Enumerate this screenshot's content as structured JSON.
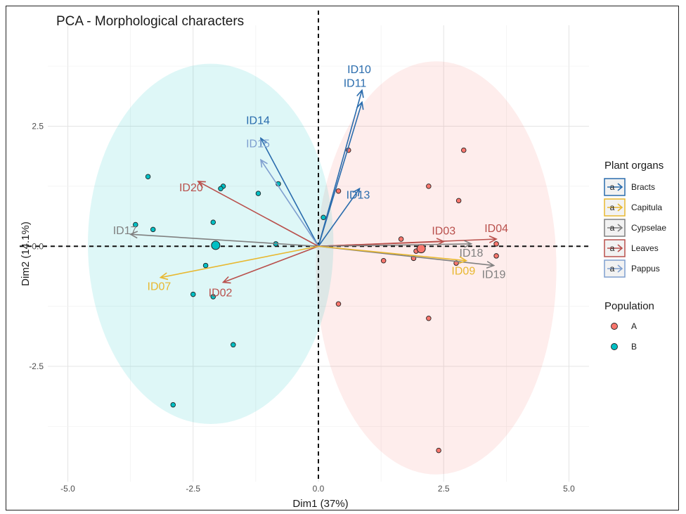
{
  "chart_data": {
    "type": "scatter",
    "title": "PCA - Morphological characters",
    "xlabel": "Dim1 (37%)",
    "ylabel": "Dim2 (14.1%)",
    "xlim": [
      -5.4,
      5.4
    ],
    "ylim": [
      -4.9,
      4.6
    ],
    "x_ticks": [
      -5.0,
      -2.5,
      0.0,
      2.5,
      5.0
    ],
    "x_tick_labels": [
      "-5.0",
      "-2.5",
      "0.0",
      "2.5",
      "5.0"
    ],
    "y_ticks": [
      -2.5,
      0.0,
      2.5
    ],
    "y_tick_labels": [
      "-2.5",
      "0.0",
      "2.5"
    ],
    "grid": true,
    "legend_position": "right",
    "ellipses": [
      {
        "population": "A",
        "center": [
          2.35,
          -0.45
        ],
        "rx": 2.4,
        "ry": 4.3,
        "color": "#f8766d"
      },
      {
        "population": "B",
        "center": [
          -2.15,
          0.05
        ],
        "rx": 2.45,
        "ry": 3.75,
        "color": "#00bfc4"
      }
    ],
    "points": [
      {
        "population": "A",
        "x": 0.6,
        "y": 2.0
      },
      {
        "population": "A",
        "x": 0.4,
        "y": 1.15
      },
      {
        "population": "A",
        "x": 2.9,
        "y": 2.0
      },
      {
        "population": "A",
        "x": 2.2,
        "y": 1.25
      },
      {
        "population": "A",
        "x": 2.8,
        "y": 0.95
      },
      {
        "population": "A",
        "x": 1.65,
        "y": 0.15
      },
      {
        "population": "A",
        "x": 1.95,
        "y": -0.1
      },
      {
        "population": "A",
        "x": 1.3,
        "y": -0.3
      },
      {
        "population": "A",
        "x": 1.9,
        "y": -0.25
      },
      {
        "population": "A",
        "x": 2.75,
        "y": -0.35
      },
      {
        "population": "A",
        "x": 3.55,
        "y": 0.05
      },
      {
        "population": "A",
        "x": 3.55,
        "y": -0.2
      },
      {
        "population": "A",
        "x": 0.4,
        "y": -1.2
      },
      {
        "population": "A",
        "x": 2.2,
        "y": -1.5
      },
      {
        "population": "A",
        "x": 2.4,
        "y": -4.25
      },
      {
        "population": "B",
        "x": -3.4,
        "y": 1.45
      },
      {
        "population": "B",
        "x": -1.9,
        "y": 1.25
      },
      {
        "population": "B",
        "x": -1.95,
        "y": 1.2
      },
      {
        "population": "B",
        "x": -1.2,
        "y": 1.1
      },
      {
        "population": "B",
        "x": -0.8,
        "y": 1.3
      },
      {
        "population": "B",
        "x": -2.1,
        "y": 0.5
      },
      {
        "population": "B",
        "x": -3.65,
        "y": 0.45
      },
      {
        "population": "B",
        "x": -3.3,
        "y": 0.35
      },
      {
        "population": "B",
        "x": -0.85,
        "y": 0.05
      },
      {
        "population": "B",
        "x": 0.1,
        "y": 0.6
      },
      {
        "population": "B",
        "x": -2.25,
        "y": -0.4
      },
      {
        "population": "B",
        "x": -2.5,
        "y": -1.0
      },
      {
        "population": "B",
        "x": -2.1,
        "y": -1.05
      },
      {
        "population": "B",
        "x": -1.7,
        "y": -2.05
      },
      {
        "population": "B",
        "x": -2.9,
        "y": -3.3
      }
    ],
    "centroids": [
      {
        "population": "A",
        "x": 2.05,
        "y": -0.05
      },
      {
        "population": "B",
        "x": -2.05,
        "y": 0.02
      }
    ],
    "variables": [
      {
        "id": "ID10",
        "organ": "Bracts",
        "x": 0.87,
        "y": 3.25
      },
      {
        "id": "ID11",
        "organ": "Bracts",
        "x": 0.87,
        "y": 3.0
      },
      {
        "id": "ID14",
        "organ": "Bracts",
        "x": -1.15,
        "y": 2.25
      },
      {
        "id": "ID13",
        "organ": "Bracts",
        "x": 0.82,
        "y": 1.2
      },
      {
        "id": "ID15",
        "organ": "Pappus",
        "x": -1.15,
        "y": 1.8
      },
      {
        "id": "ID20",
        "organ": "Leaves",
        "x": -2.4,
        "y": 1.35
      },
      {
        "id": "ID03",
        "organ": "Leaves",
        "x": 2.5,
        "y": 0.1
      },
      {
        "id": "ID04",
        "organ": "Leaves",
        "x": 3.55,
        "y": 0.15
      },
      {
        "id": "ID02",
        "organ": "Leaves",
        "x": -1.9,
        "y": -0.75
      },
      {
        "id": "ID17",
        "organ": "Cypselae",
        "x": -3.75,
        "y": 0.25
      },
      {
        "id": "ID18",
        "organ": "Cypselae",
        "x": 3.05,
        "y": 0.05
      },
      {
        "id": "ID19",
        "organ": "Cypselae",
        "x": 3.5,
        "y": -0.4
      },
      {
        "id": "ID07",
        "organ": "Capitula",
        "x": -3.15,
        "y": -0.65
      },
      {
        "id": "ID09",
        "organ": "Capitula",
        "x": 2.95,
        "y": -0.3
      }
    ],
    "legend_organs": {
      "title": "Plant organs",
      "items": [
        {
          "name": "Bracts",
          "color": "#2a6cad"
        },
        {
          "name": "Capitula",
          "color": "#e8b830"
        },
        {
          "name": "Cypselae",
          "color": "#808080"
        },
        {
          "name": "Leaves",
          "color": "#b9504c"
        },
        {
          "name": "Pappus",
          "color": "#7f9fcf"
        }
      ]
    },
    "legend_population": {
      "title": "Population",
      "items": [
        {
          "name": "A",
          "color": "#f8766d"
        },
        {
          "name": "B",
          "color": "#00bfc4"
        }
      ]
    }
  }
}
